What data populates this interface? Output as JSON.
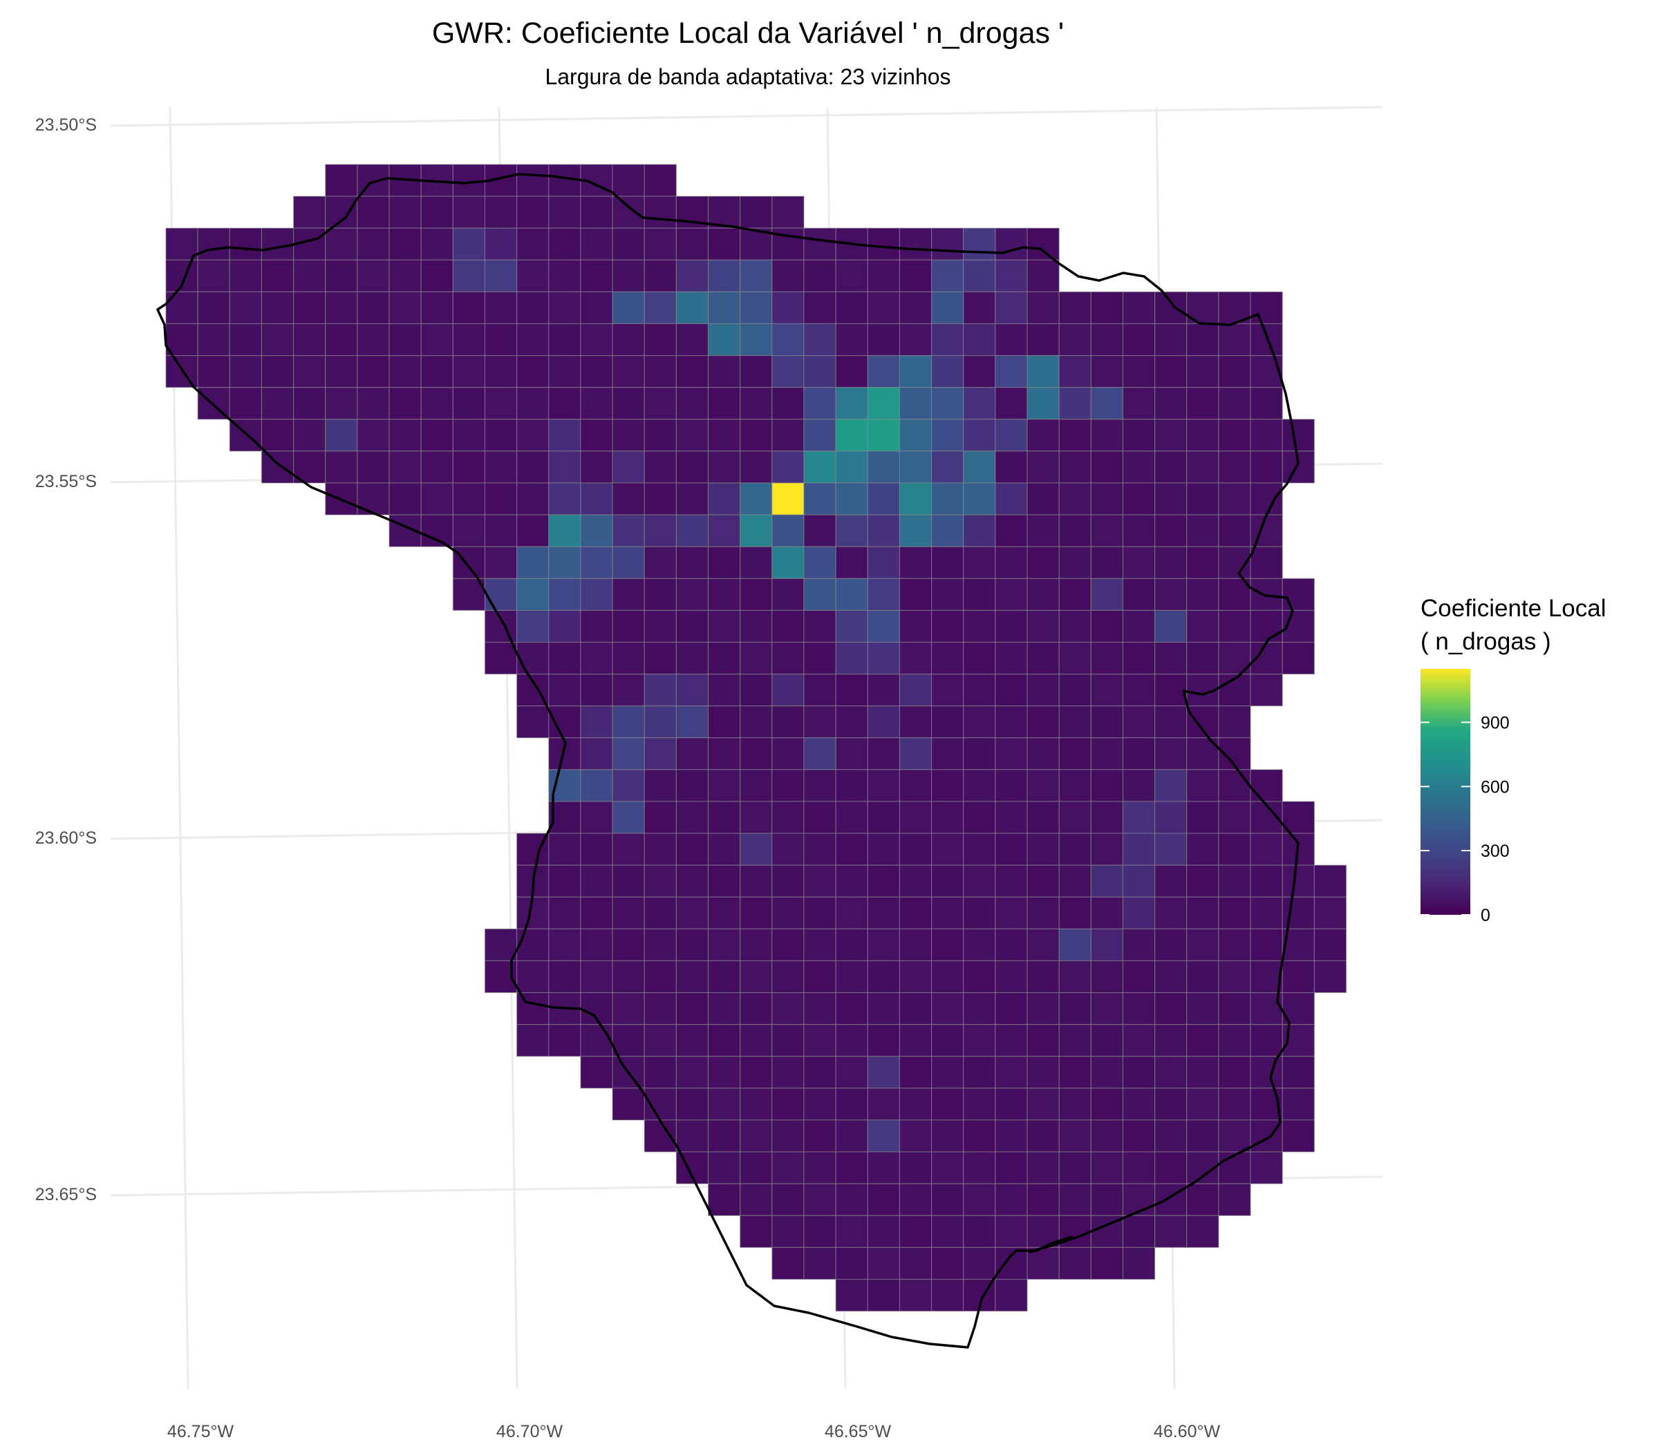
{
  "title": "GWR: Coeficiente Local da Variável ' n_drogas '",
  "subtitle": "Largura de banda adaptativa: 23 vizinhos",
  "legend": {
    "title_line1": "Coeficiente Local",
    "title_line2": "( n_drogas )",
    "ticks": [
      "0",
      "300",
      "600",
      "900"
    ],
    "range": [
      0,
      1150
    ],
    "palette": "viridis"
  },
  "axes": {
    "x_ticks": [
      "46.75°W",
      "46.70°W",
      "46.65°W",
      "46.60°W"
    ],
    "y_ticks": [
      "23.50°S",
      "23.55°S",
      "23.60°S",
      "23.65°S"
    ],
    "grid": true
  },
  "chart_data": {
    "type": "heatmap",
    "title": "GWR: Coeficiente Local da Variável ' n_drogas '",
    "subtitle": "Largura de banda adaptativa: 23 vizinhos",
    "x_range": [
      "46.75°W",
      "46.60°W"
    ],
    "y_range": [
      "23.50°S",
      "23.65°S"
    ],
    "color_scale": "viridis",
    "value_range": [
      0,
      1150
    ],
    "row_ranges": [
      [
        5,
        15
      ],
      [
        4,
        19
      ],
      [
        0,
        27
      ],
      [
        0,
        27
      ],
      [
        0,
        34
      ],
      [
        0,
        34
      ],
      [
        0,
        34
      ],
      [
        1,
        34
      ],
      [
        2,
        35
      ],
      [
        3,
        35
      ],
      [
        5,
        34
      ],
      [
        7,
        34
      ],
      [
        9,
        34
      ],
      [
        9,
        35
      ],
      [
        10,
        35
      ],
      [
        10,
        35
      ],
      [
        11,
        34
      ],
      [
        11,
        33
      ],
      [
        12,
        33
      ],
      [
        12,
        34
      ],
      [
        12,
        35
      ],
      [
        11,
        35
      ],
      [
        11,
        36
      ],
      [
        11,
        36
      ],
      [
        10,
        36
      ],
      [
        10,
        36
      ],
      [
        11,
        35
      ],
      [
        11,
        35
      ],
      [
        13,
        35
      ],
      [
        14,
        35
      ],
      [
        15,
        35
      ],
      [
        16,
        34
      ],
      [
        17,
        33
      ],
      [
        18,
        32
      ],
      [
        19,
        30
      ],
      [
        21,
        26
      ]
    ],
    "sparse_values": [
      [
        2,
        9,
        210
      ],
      [
        2,
        10,
        120
      ],
      [
        2,
        25,
        240
      ],
      [
        2,
        24,
        90
      ],
      [
        2,
        26,
        80
      ],
      [
        3,
        9,
        230
      ],
      [
        3,
        10,
        250
      ],
      [
        3,
        18,
        330
      ],
      [
        3,
        17,
        280
      ],
      [
        3,
        16,
        170
      ],
      [
        3,
        24,
        290
      ],
      [
        3,
        25,
        220
      ],
      [
        3,
        26,
        160
      ],
      [
        3,
        29,
        210
      ],
      [
        4,
        14,
        370
      ],
      [
        4,
        15,
        270
      ],
      [
        4,
        16,
        520
      ],
      [
        4,
        17,
        420
      ],
      [
        4,
        18,
        360
      ],
      [
        4,
        19,
        140
      ],
      [
        4,
        24,
        370
      ],
      [
        4,
        26,
        160
      ],
      [
        5,
        17,
        520
      ],
      [
        5,
        18,
        430
      ],
      [
        5,
        19,
        290
      ],
      [
        5,
        20,
        200
      ],
      [
        5,
        24,
        180
      ],
      [
        5,
        25,
        130
      ],
      [
        6,
        19,
        240
      ],
      [
        6,
        20,
        210
      ],
      [
        6,
        22,
        330
      ],
      [
        6,
        23,
        470
      ],
      [
        6,
        24,
        220
      ],
      [
        6,
        26,
        300
      ],
      [
        6,
        27,
        520
      ],
      [
        6,
        28,
        110
      ],
      [
        7,
        20,
        310
      ],
      [
        7,
        21,
        580
      ],
      [
        7,
        22,
        760
      ],
      [
        7,
        23,
        420
      ],
      [
        7,
        24,
        380
      ],
      [
        7,
        25,
        200
      ],
      [
        7,
        27,
        520
      ],
      [
        7,
        28,
        210
      ],
      [
        7,
        29,
        310
      ],
      [
        8,
        5,
        220
      ],
      [
        8,
        12,
        180
      ],
      [
        8,
        20,
        320
      ],
      [
        8,
        21,
        780
      ],
      [
        8,
        22,
        800
      ],
      [
        8,
        23,
        480
      ],
      [
        8,
        24,
        340
      ],
      [
        8,
        25,
        200
      ],
      [
        8,
        26,
        240
      ],
      [
        9,
        12,
        160
      ],
      [
        9,
        14,
        170
      ],
      [
        9,
        19,
        200
      ],
      [
        9,
        20,
        660
      ],
      [
        9,
        21,
        580
      ],
      [
        9,
        22,
        420
      ],
      [
        9,
        23,
        460
      ],
      [
        9,
        24,
        240
      ],
      [
        9,
        25,
        500
      ],
      [
        10,
        12,
        200
      ],
      [
        10,
        13,
        180
      ],
      [
        10,
        17,
        180
      ],
      [
        10,
        18,
        480
      ],
      [
        10,
        19,
        1150
      ],
      [
        10,
        20,
        380
      ],
      [
        10,
        21,
        440
      ],
      [
        10,
        22,
        280
      ],
      [
        10,
        23,
        640
      ],
      [
        10,
        24,
        420
      ],
      [
        10,
        25,
        440
      ],
      [
        10,
        26,
        180
      ],
      [
        11,
        12,
        620
      ],
      [
        11,
        13,
        420
      ],
      [
        11,
        14,
        200
      ],
      [
        11,
        15,
        160
      ],
      [
        11,
        16,
        220
      ],
      [
        11,
        17,
        160
      ],
      [
        11,
        18,
        640
      ],
      [
        11,
        19,
        360
      ],
      [
        11,
        20,
        60
      ],
      [
        11,
        21,
        250
      ],
      [
        11,
        22,
        200
      ],
      [
        11,
        23,
        530
      ],
      [
        11,
        24,
        360
      ],
      [
        11,
        25,
        180
      ],
      [
        12,
        11,
        400
      ],
      [
        12,
        12,
        420
      ],
      [
        12,
        13,
        310
      ],
      [
        12,
        14,
        280
      ],
      [
        12,
        19,
        620
      ],
      [
        12,
        20,
        340
      ],
      [
        12,
        22,
        180
      ],
      [
        13,
        10,
        260
      ],
      [
        13,
        11,
        460
      ],
      [
        13,
        12,
        300
      ],
      [
        13,
        13,
        230
      ],
      [
        13,
        20,
        380
      ],
      [
        13,
        21,
        390
      ],
      [
        13,
        22,
        250
      ],
      [
        13,
        29,
        200
      ],
      [
        14,
        11,
        250
      ],
      [
        14,
        12,
        140
      ],
      [
        14,
        21,
        240
      ],
      [
        14,
        22,
        340
      ],
      [
        14,
        31,
        280
      ],
      [
        15,
        21,
        190
      ],
      [
        15,
        22,
        200
      ],
      [
        16,
        15,
        190
      ],
      [
        16,
        16,
        160
      ],
      [
        16,
        19,
        150
      ],
      [
        16,
        23,
        180
      ],
      [
        17,
        13,
        150
      ],
      [
        17,
        14,
        280
      ],
      [
        17,
        15,
        220
      ],
      [
        17,
        16,
        270
      ],
      [
        17,
        22,
        140
      ],
      [
        18,
        13,
        110
      ],
      [
        18,
        14,
        290
      ],
      [
        18,
        15,
        170
      ],
      [
        18,
        20,
        240
      ],
      [
        18,
        23,
        200
      ],
      [
        19,
        12,
        380
      ],
      [
        19,
        13,
        320
      ],
      [
        19,
        14,
        200
      ],
      [
        19,
        31,
        200
      ],
      [
        20,
        14,
        310
      ],
      [
        20,
        30,
        200
      ],
      [
        20,
        31,
        150
      ],
      [
        21,
        18,
        200
      ],
      [
        21,
        30,
        180
      ],
      [
        21,
        31,
        200
      ],
      [
        22,
        29,
        180
      ],
      [
        22,
        30,
        180
      ],
      [
        23,
        30,
        140
      ],
      [
        24,
        28,
        260
      ],
      [
        24,
        29,
        130
      ],
      [
        28,
        22,
        200
      ],
      [
        30,
        22,
        230
      ]
    ],
    "default_value": 40
  }
}
